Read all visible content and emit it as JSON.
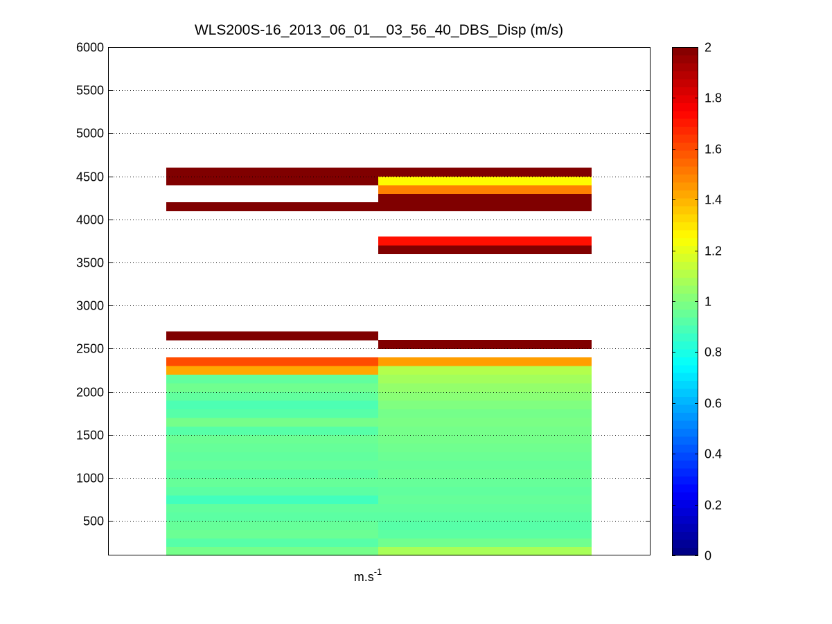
{
  "chart_data": {
    "type": "heatmap",
    "title": "WLS200S-16_2013_06_01__03_56_40_DBS_Disp (m/s)",
    "xlabel_base": "m.s",
    "xlabel_exp": "-1",
    "ylabel": "",
    "ylim": [
      100,
      6000
    ],
    "y_ticks": [
      500,
      1000,
      1500,
      2000,
      2500,
      3000,
      3500,
      4000,
      4500,
      5000,
      5500,
      6000
    ],
    "grid": "horizontal dotted",
    "colorbar": {
      "colormap": "jet",
      "clim": [
        0,
        2
      ],
      "ticks": [
        "0",
        "0.2",
        "0.4",
        "0.6",
        "0.8",
        "1",
        "1.2",
        "1.4",
        "1.6",
        "1.8",
        "2"
      ]
    },
    "altitude_bin_m": 100,
    "columns": [
      {
        "bins": [
          [
            100,
            0.98
          ],
          [
            200,
            0.92
          ],
          [
            300,
            0.96
          ],
          [
            400,
            0.95
          ],
          [
            500,
            0.93
          ],
          [
            600,
            0.94
          ],
          [
            700,
            0.88
          ],
          [
            800,
            0.93
          ],
          [
            900,
            0.95
          ],
          [
            1000,
            0.93
          ],
          [
            1100,
            0.95
          ],
          [
            1200,
            0.94
          ],
          [
            1300,
            0.95
          ],
          [
            1400,
            0.96
          ],
          [
            1500,
            0.92
          ],
          [
            1600,
            0.98
          ],
          [
            1700,
            0.92
          ],
          [
            1800,
            0.9
          ],
          [
            1900,
            0.94
          ],
          [
            2000,
            0.97
          ],
          [
            2100,
            0.94
          ],
          [
            2200,
            1.42
          ],
          [
            2300,
            1.6
          ],
          [
            2600,
            2.0
          ],
          [
            4100,
            2.0
          ],
          [
            4400,
            2.0
          ],
          [
            4500,
            2.0
          ]
        ]
      },
      {
        "bins": [
          [
            100,
            1.08
          ],
          [
            200,
            0.97
          ],
          [
            300,
            0.93
          ],
          [
            400,
            0.92
          ],
          [
            500,
            0.93
          ],
          [
            600,
            0.94
          ],
          [
            700,
            0.95
          ],
          [
            800,
            0.94
          ],
          [
            900,
            0.95
          ],
          [
            1000,
            0.96
          ],
          [
            1100,
            0.95
          ],
          [
            1200,
            0.96
          ],
          [
            1300,
            0.97
          ],
          [
            1400,
            0.98
          ],
          [
            1500,
            0.98
          ],
          [
            1600,
            0.99
          ],
          [
            1700,
            0.98
          ],
          [
            1800,
            1.0
          ],
          [
            1900,
            1.02
          ],
          [
            2000,
            1.04
          ],
          [
            2100,
            1.07
          ],
          [
            2200,
            1.1
          ],
          [
            2300,
            1.44
          ],
          [
            2500,
            2.0
          ],
          [
            3600,
            2.0
          ],
          [
            3700,
            1.72
          ],
          [
            4100,
            2.0
          ],
          [
            4200,
            2.0
          ],
          [
            4300,
            1.5
          ],
          [
            4400,
            1.26
          ],
          [
            4500,
            2.0
          ]
        ]
      }
    ]
  }
}
